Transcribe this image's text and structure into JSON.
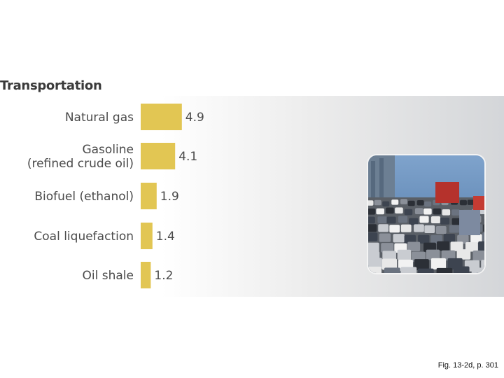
{
  "chart_data": {
    "type": "bar",
    "orientation": "horizontal",
    "title": "Transportation",
    "categories": [
      [
        "Natural gas"
      ],
      [
        "Gasoline",
        "(refined crude oil)"
      ],
      [
        "Biofuel (ethanol)"
      ],
      [
        "Coal liquefaction"
      ],
      [
        "Oil shale"
      ]
    ],
    "values": [
      4.9,
      4.1,
      1.9,
      1.4,
      1.2
    ],
    "value_labels": [
      "4.9",
      "4.1",
      "1.9",
      "1.4",
      "1.2"
    ],
    "bar_color": "#e2c653",
    "grid": false,
    "legend": "none"
  },
  "photo": {
    "subject": "traffic-jam-photo",
    "sky_color": "#5b86b6"
  },
  "caption": "Fig. 13-2d, p. 301"
}
